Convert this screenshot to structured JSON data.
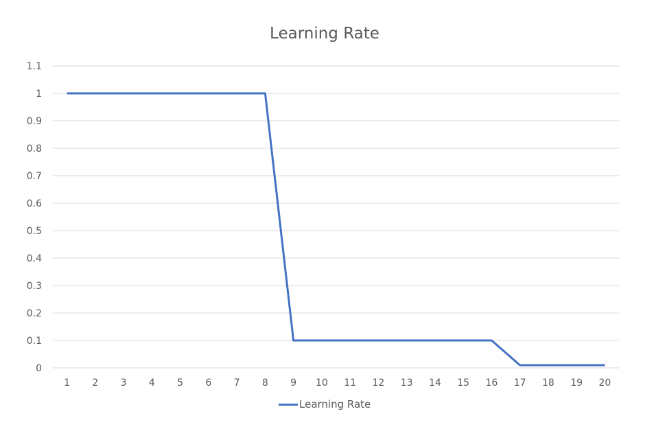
{
  "chart_data": {
    "type": "line",
    "title": "Learning Rate",
    "xlabel": "",
    "ylabel": "",
    "categories": [
      "1",
      "2",
      "3",
      "4",
      "5",
      "6",
      "7",
      "8",
      "9",
      "10",
      "11",
      "12",
      "13",
      "14",
      "15",
      "16",
      "17",
      "18",
      "19",
      "20"
    ],
    "series": [
      {
        "name": "Learning Rate",
        "color": "#4472C4",
        "values": [
          1,
          1,
          1,
          1,
          1,
          1,
          1,
          1,
          0.1,
          0.1,
          0.1,
          0.1,
          0.1,
          0.1,
          0.1,
          0.1,
          0.01,
          0.01,
          0.01,
          0.01
        ]
      }
    ],
    "ylim": [
      0,
      1.1
    ],
    "yticks": [
      "0",
      "0.1",
      "0.2",
      "0.3",
      "0.4",
      "0.5",
      "0.6",
      "0.7",
      "0.8",
      "0.9",
      "1",
      "1.1"
    ],
    "grid": true,
    "legend_position": "bottom"
  }
}
